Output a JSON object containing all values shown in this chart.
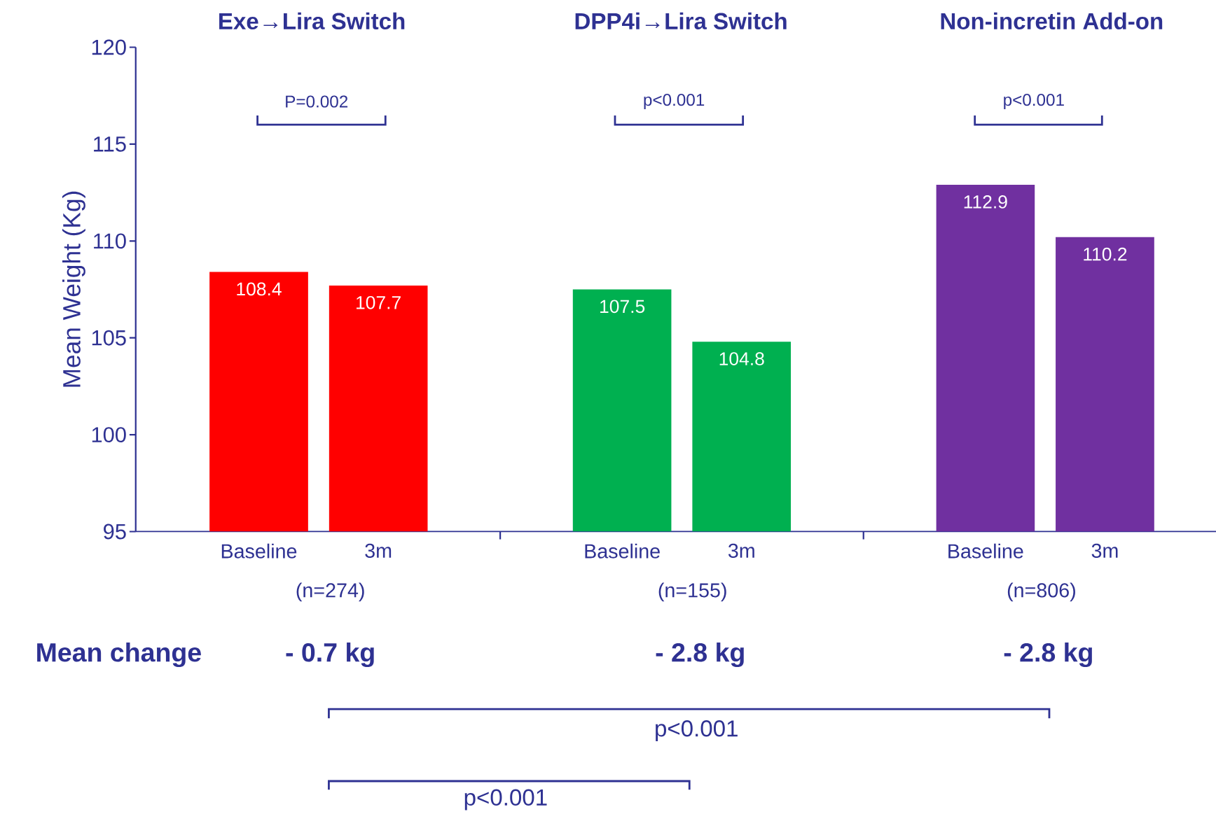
{
  "chart_data": {
    "type": "bar",
    "ylabel": "Mean Weight (Kg)",
    "categories": [
      "Baseline",
      "3m",
      "Baseline",
      "3m",
      "Baseline",
      "3m"
    ],
    "values": [
      108.4,
      107.7,
      107.5,
      104.8,
      112.9,
      110.2
    ],
    "colors": [
      "#ff0000",
      "#ff0000",
      "#00b050",
      "#00b050",
      "#7030a0",
      "#7030a0"
    ],
    "ylim": [
      95,
      120
    ],
    "yticks": [
      95,
      100,
      105,
      110,
      115,
      120
    ],
    "data_labels": true,
    "annotations": [
      "Exe→Lira Switch",
      "DPP4i→Lira Switch",
      "Non-incretin Add-on",
      "P=0.002",
      "p<0.001",
      "p<0.001",
      "(n=274)",
      "(n=155)",
      "(n=806)",
      "Mean change",
      "- 0.7 kg",
      "- 2.8 kg",
      "- 2.8 kg",
      "p<0.001",
      "p<0.001"
    ]
  }
}
